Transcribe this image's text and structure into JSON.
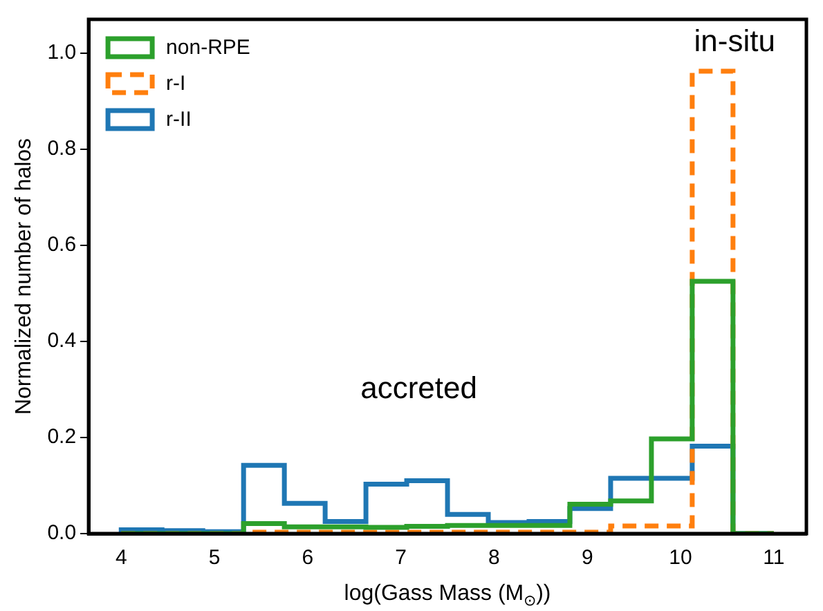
{
  "chart_data": {
    "type": "histogram",
    "xlabel": "log(Gass Mass (M$_{⊙}$))",
    "ylabel": "Normalized number of halos",
    "bins": [
      4,
      4.4375,
      4.875,
      5.3125,
      5.75,
      6.1875,
      6.625,
      7.0625,
      7.5,
      7.9375,
      8.375,
      8.8125,
      9.25,
      9.6875,
      10.125,
      10.5625,
      11
    ],
    "series": [
      {
        "name": "non-RPE",
        "color": "#2ca02c",
        "line_style": "solid",
        "values": [
          0,
          0,
          0,
          0.021,
          0.014,
          0.014,
          0.013,
          0.015,
          0.017,
          0.017,
          0.017,
          0.061,
          0.068,
          0.197,
          0.525,
          0
        ]
      },
      {
        "name": "r-I",
        "color": "#ff7f0e",
        "line_style": "dashed",
        "values": [
          0,
          0,
          0,
          0.003,
          0.003,
          0.003,
          0.003,
          0.003,
          0.003,
          0.003,
          0.003,
          0.003,
          0.016,
          0.016,
          0.962,
          0
        ]
      },
      {
        "name": "r-II",
        "color": "#1f77b4",
        "line_style": "solid",
        "values": [
          0.008,
          0.006,
          0.004,
          0.142,
          0.063,
          0.025,
          0.103,
          0.11,
          0.04,
          0.023,
          0.025,
          0.052,
          0.115,
          0.115,
          0.182,
          0
        ]
      }
    ],
    "annotations": [
      "in-situ",
      "accreted"
    ],
    "xlim": [
      3.65,
      11.35
    ],
    "ylim": [
      0,
      1.07
    ],
    "xticks": [
      4,
      5,
      6,
      7,
      8,
      9,
      10,
      11
    ],
    "yticks": [
      {
        "value": 0,
        "label": "0.0"
      },
      0.2,
      0.4,
      0.6,
      0.8,
      {
        "value": 1,
        "label": "1.0"
      }
    ],
    "grid": false,
    "legend": "top left"
  }
}
